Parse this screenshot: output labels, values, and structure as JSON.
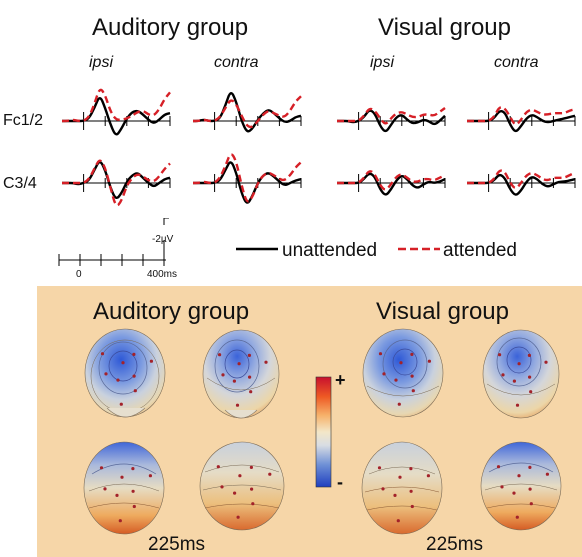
{
  "erp_figure": {
    "groups": [
      {
        "title": "Auditory group",
        "columns": [
          "ipsi",
          "contra"
        ]
      },
      {
        "title": "Visual group",
        "columns": [
          "ipsi",
          "contra"
        ]
      }
    ],
    "rows": [
      "Fc1/2",
      "C3/4"
    ],
    "scale": {
      "amplitude_label": "-2µV",
      "time_labels": [
        "0",
        "400ms"
      ]
    },
    "legend": [
      {
        "label": "unattended",
        "color": "#000000",
        "style": "solid"
      },
      {
        "label": "attended",
        "color": "#d62027",
        "style": "dashed"
      }
    ]
  },
  "topography": {
    "groups": [
      {
        "title": "Auditory group",
        "time_label": "225ms"
      },
      {
        "title": "Visual group",
        "time_label": "225ms"
      }
    ],
    "colorbar": {
      "max_label": "+",
      "min_label": "-"
    },
    "panel_color": "#f6d6a8"
  },
  "chart_data": {
    "type": "line",
    "x_unit": "ms",
    "xlim": [
      -100,
      400
    ],
    "x_ticks": [
      0,
      100,
      200,
      300,
      400
    ],
    "y_scale_bar": "-2µV",
    "time_points": [
      -100,
      -75,
      -50,
      -25,
      0,
      25,
      50,
      75,
      100,
      125,
      150,
      175,
      200,
      225,
      250,
      275,
      300,
      325,
      350,
      375,
      400
    ],
    "panels": [
      {
        "group": "Auditory group",
        "site": "Fc1/2",
        "column": "ipsi",
        "series": [
          {
            "name": "unattended",
            "values": [
              0,
              0,
              0,
              0,
              0,
              0.2,
              1.0,
              2.0,
              1.0,
              -0.3,
              -1.2,
              -0.6,
              0.2,
              0.7,
              0.8,
              0.5,
              0.1,
              -0.2,
              0.1,
              0.5,
              0.6
            ]
          },
          {
            "name": "attended",
            "values": [
              0,
              0,
              0.1,
              0,
              0,
              0.3,
              1.3,
              2.6,
              2.0,
              0.7,
              0.1,
              0.1,
              0.2,
              0.4,
              0.7,
              0.8,
              0.5,
              0.4,
              0.9,
              1.7,
              2.2
            ]
          }
        ]
      },
      {
        "group": "Auditory group",
        "site": "Fc1/2",
        "column": "contra",
        "series": [
          {
            "name": "unattended",
            "values": [
              0,
              0,
              0.1,
              0,
              0,
              0.2,
              1.2,
              2.4,
              1.5,
              0.0,
              -0.9,
              -0.6,
              0.1,
              0.6,
              0.9,
              0.6,
              0.2,
              -0.1,
              0.0,
              0.3,
              0.4
            ]
          },
          {
            "name": "attended",
            "values": [
              0,
              0,
              0.1,
              0,
              0,
              0.3,
              1.0,
              1.7,
              1.3,
              0.4,
              -0.4,
              -0.5,
              0.0,
              0.5,
              0.8,
              0.6,
              0.4,
              0.3,
              0.8,
              1.5,
              1.9
            ]
          }
        ]
      },
      {
        "group": "Visual group",
        "site": "Fc1/2",
        "column": "ipsi",
        "series": [
          {
            "name": "unattended",
            "values": [
              0,
              0,
              0,
              -0.1,
              0,
              0.3,
              0.9,
              0.6,
              -0.4,
              -0.9,
              -0.3,
              0.3,
              0.5,
              0.1,
              -0.2,
              -0.1,
              0.1,
              0.0,
              -0.3,
              0.0,
              0.4
            ]
          },
          {
            "name": "attended",
            "values": [
              0,
              0,
              0,
              0,
              0,
              0.4,
              1.0,
              0.8,
              0.2,
              -0.3,
              0.2,
              0.6,
              0.7,
              0.5,
              0.3,
              0.3,
              0.5,
              0.5,
              0.4,
              0.7,
              1.0
            ]
          }
        ]
      },
      {
        "group": "Visual group",
        "site": "Fc1/2",
        "column": "contra",
        "series": [
          {
            "name": "unattended",
            "values": [
              0,
              0,
              0,
              0,
              0,
              0.2,
              0.8,
              0.7,
              -0.3,
              -0.9,
              -0.4,
              0.2,
              0.5,
              0.3,
              0.0,
              -0.1,
              0.0,
              0.1,
              0.2,
              0.3,
              0.4
            ]
          },
          {
            "name": "attended",
            "values": [
              0,
              0,
              0,
              0,
              0,
              0.3,
              1.1,
              1.0,
              0.3,
              -0.4,
              0.1,
              0.7,
              0.9,
              0.7,
              0.5,
              0.5,
              0.6,
              0.6,
              0.6,
              0.8,
              0.9
            ]
          }
        ]
      },
      {
        "group": "Auditory group",
        "site": "C3/4",
        "column": "ipsi",
        "series": [
          {
            "name": "unattended",
            "values": [
              0,
              0,
              0,
              -0.1,
              0,
              0.2,
              1.0,
              1.8,
              1.0,
              -0.4,
              -1.3,
              -0.8,
              0.1,
              0.6,
              0.8,
              0.4,
              0.0,
              -0.3,
              0.0,
              0.3,
              0.4
            ]
          },
          {
            "name": "attended",
            "values": [
              0,
              0,
              0,
              0,
              0,
              0.3,
              1.1,
              1.9,
              1.2,
              -0.4,
              -1.9,
              -1.4,
              -0.2,
              0.4,
              0.7,
              0.5,
              0.2,
              0.1,
              0.5,
              1.1,
              1.5
            ]
          }
        ]
      },
      {
        "group": "Auditory group",
        "site": "C3/4",
        "column": "contra",
        "series": [
          {
            "name": "unattended",
            "values": [
              0,
              0,
              0,
              0,
              0,
              0.2,
              1.0,
              1.8,
              0.8,
              -0.8,
              -1.7,
              -1.0,
              0.0,
              0.6,
              0.8,
              0.5,
              0.1,
              -0.2,
              0.0,
              0.2,
              0.3
            ]
          },
          {
            "name": "attended",
            "values": [
              0,
              0,
              0.1,
              0,
              0,
              0.4,
              1.3,
              2.4,
              1.7,
              -0.2,
              -1.6,
              -1.1,
              0.0,
              0.6,
              0.8,
              0.6,
              0.3,
              0.2,
              0.6,
              1.2,
              1.6
            ]
          }
        ]
      },
      {
        "group": "Visual group",
        "site": "C3/4",
        "column": "ipsi",
        "series": [
          {
            "name": "unattended",
            "values": [
              0,
              0,
              0,
              0,
              0,
              0.3,
              0.8,
              0.5,
              -0.5,
              -1.0,
              -0.5,
              0.2,
              0.6,
              0.3,
              -0.2,
              -0.4,
              -0.1,
              0.1,
              0.0,
              0.1,
              0.3
            ]
          },
          {
            "name": "attended",
            "values": [
              0,
              0,
              0,
              0,
              0,
              0.4,
              1.0,
              0.7,
              -0.2,
              -0.6,
              -0.1,
              0.5,
              0.7,
              0.4,
              0.1,
              0.1,
              0.3,
              0.3,
              0.2,
              0.4,
              0.6
            ]
          }
        ]
      },
      {
        "group": "Visual group",
        "site": "C3/4",
        "column": "contra",
        "series": [
          {
            "name": "unattended",
            "values": [
              0,
              0,
              0,
              0,
              0,
              0.2,
              0.7,
              0.4,
              -0.5,
              -1.0,
              -0.6,
              0.1,
              0.5,
              0.3,
              -0.1,
              -0.3,
              -0.1,
              0.1,
              0.1,
              0.2,
              0.3
            ]
          },
          {
            "name": "attended",
            "values": [
              0,
              0,
              0,
              0,
              0,
              0.3,
              1.0,
              0.9,
              0.0,
              -0.5,
              0.0,
              0.6,
              0.8,
              0.6,
              0.3,
              0.2,
              0.4,
              0.4,
              0.4,
              0.6,
              0.8
            ]
          }
        ]
      }
    ],
    "legend": [
      "unattended",
      "attended"
    ]
  }
}
